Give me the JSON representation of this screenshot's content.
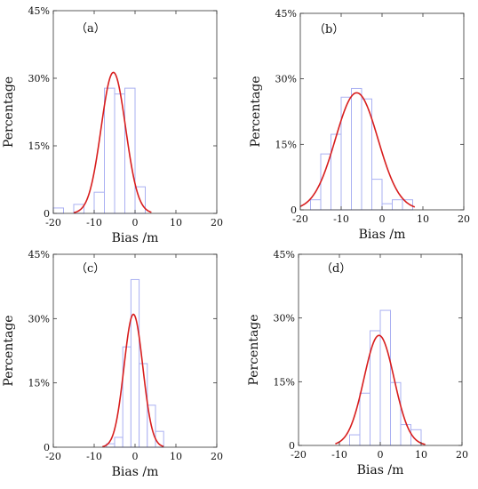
{
  "chart_data": [
    {
      "type": "bar",
      "panel_label": "（a）",
      "xlabel": "Bias /m",
      "ylabel": "Percentage",
      "xlim": [
        -20,
        20
      ],
      "ylim": [
        0,
        45
      ],
      "xticks": [
        -20,
        -10,
        0,
        10,
        20
      ],
      "yticks": [
        0,
        15,
        30,
        45
      ],
      "ytick_labels": [
        "0",
        "15%",
        "30%",
        "45%"
      ],
      "bins": [
        {
          "x0": -20,
          "x1": -17.5,
          "value": 1.2
        },
        {
          "x0": -17.5,
          "x1": -15,
          "value": 0
        },
        {
          "x0": -15,
          "x1": -12.5,
          "value": 2.0
        },
        {
          "x0": -12.5,
          "x1": -10,
          "value": 0
        },
        {
          "x0": -10,
          "x1": -7.5,
          "value": 4.7
        },
        {
          "x0": -7.5,
          "x1": -5,
          "value": 27.8
        },
        {
          "x0": -5,
          "x1": -2.5,
          "value": 26.5
        },
        {
          "x0": -2.5,
          "x1": 0,
          "value": 27.8
        },
        {
          "x0": 0,
          "x1": 2.5,
          "value": 5.9
        }
      ],
      "fit": {
        "mean": -5.3,
        "peak": 31.3,
        "sigma": 3.0,
        "x_range": [
          -15,
          4
        ]
      },
      "bar_color": "#aab0f2",
      "curve_color": "#d81e1e"
    },
    {
      "type": "bar",
      "panel_label": "（b）",
      "xlabel": "Bias /m",
      "ylabel": "Percentage",
      "xlim": [
        -20,
        20
      ],
      "ylim": [
        0,
        45
      ],
      "xticks": [
        -20,
        -10,
        0,
        10,
        20
      ],
      "yticks": [
        0,
        15,
        30,
        45
      ],
      "ytick_labels": [
        "0",
        "15%",
        "30%",
        "45%"
      ],
      "bins": [
        {
          "x0": -17.5,
          "x1": -15,
          "value": 2.3
        },
        {
          "x0": -15,
          "x1": -12.5,
          "value": 12.8
        },
        {
          "x0": -12.5,
          "x1": -10,
          "value": 17.3
        },
        {
          "x0": -10,
          "x1": -7.5,
          "value": 25.8
        },
        {
          "x0": -7.5,
          "x1": -5,
          "value": 27.8
        },
        {
          "x0": -5,
          "x1": -2.5,
          "value": 25.4
        },
        {
          "x0": -2.5,
          "x1": 0,
          "value": 7.0
        },
        {
          "x0": 0,
          "x1": 2.5,
          "value": 1.4
        },
        {
          "x0": 2.5,
          "x1": 5,
          "value": 2.3
        },
        {
          "x0": 5,
          "x1": 7.5,
          "value": 2.3
        }
      ],
      "fit": {
        "mean": -6.2,
        "peak": 26.8,
        "sigma": 5.2,
        "x_range": [
          -20,
          8
        ]
      },
      "bar_color": "#aab0f2",
      "curve_color": "#d81e1e"
    },
    {
      "type": "bar",
      "panel_label": "（c）",
      "xlabel": "Bias /m",
      "ylabel": "Percentage",
      "xlim": [
        -20,
        20
      ],
      "ylim": [
        0,
        45
      ],
      "xticks": [
        -20,
        -10,
        0,
        10,
        20
      ],
      "yticks": [
        0,
        15,
        30,
        45
      ],
      "ytick_labels": [
        "0",
        "15%",
        "30%",
        "45%"
      ],
      "bins": [
        {
          "x0": -7,
          "x1": -5,
          "value": 0.8
        },
        {
          "x0": -5,
          "x1": -3,
          "value": 2.3
        },
        {
          "x0": -3,
          "x1": -1,
          "value": 23.4
        },
        {
          "x0": -1,
          "x1": 1,
          "value": 39.1
        },
        {
          "x0": 1,
          "x1": 3,
          "value": 19.5
        },
        {
          "x0": 3,
          "x1": 5,
          "value": 9.8
        },
        {
          "x0": 5,
          "x1": 7,
          "value": 3.7
        }
      ],
      "fit": {
        "mean": -0.4,
        "peak": 31.0,
        "sigma": 2.3,
        "x_range": [
          -8,
          7
        ]
      },
      "bar_color": "#aab0f2",
      "curve_color": "#d81e1e"
    },
    {
      "type": "bar",
      "panel_label": "（d）",
      "xlabel": "Bias /m",
      "ylabel": "Percentage",
      "xlim": [
        -20,
        20
      ],
      "ylim": [
        0,
        45
      ],
      "xticks": [
        -20,
        -10,
        0,
        10,
        20
      ],
      "yticks": [
        0,
        15,
        30,
        45
      ],
      "ytick_labels": [
        "0",
        "15%",
        "30%",
        "45%"
      ],
      "bins": [
        {
          "x0": -7.5,
          "x1": -5,
          "value": 2.5
        },
        {
          "x0": -5,
          "x1": -2.5,
          "value": 12.3
        },
        {
          "x0": -2.5,
          "x1": 0,
          "value": 27.0
        },
        {
          "x0": 0,
          "x1": 2.5,
          "value": 31.8
        },
        {
          "x0": 2.5,
          "x1": 5,
          "value": 14.8
        },
        {
          "x0": 5,
          "x1": 7.5,
          "value": 4.9
        },
        {
          "x0": 7.5,
          "x1": 10,
          "value": 3.7
        }
      ],
      "fit": {
        "mean": -0.3,
        "peak": 25.9,
        "sigma": 3.7,
        "x_range": [
          -11,
          11
        ]
      },
      "bar_color": "#aab0f2",
      "curve_color": "#d81e1e"
    }
  ]
}
